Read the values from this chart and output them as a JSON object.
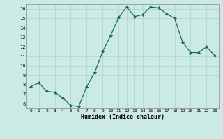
{
  "x_data": [
    0,
    1,
    2,
    3,
    4,
    5,
    6,
    7,
    8,
    9,
    10,
    11,
    12,
    13,
    14,
    15,
    16,
    17,
    18,
    19,
    20,
    21,
    22,
    23
  ],
  "y_data": [
    7.8,
    8.2,
    7.3,
    7.2,
    6.6,
    5.8,
    5.7,
    7.8,
    9.3,
    11.5,
    13.2,
    15.1,
    16.2,
    15.2,
    15.4,
    16.2,
    16.1,
    15.5,
    15.0,
    12.5,
    11.4,
    11.4,
    12.0,
    11.1
  ],
  "xlabel": "Humidex (Indice chaleur)",
  "line_color": "#1a6b55",
  "marker_color": "#1a6b55",
  "bg_color": "#cceae4",
  "grid_color": "#aad4cc",
  "xlim": [
    -0.5,
    23.5
  ],
  "ylim": [
    5.5,
    16.5
  ],
  "yticks": [
    6,
    7,
    8,
    9,
    10,
    11,
    12,
    13,
    14,
    15,
    16
  ],
  "xticks": [
    0,
    1,
    2,
    3,
    4,
    5,
    6,
    7,
    8,
    9,
    10,
    11,
    12,
    13,
    14,
    15,
    16,
    17,
    18,
    19,
    20,
    21,
    22,
    23
  ]
}
